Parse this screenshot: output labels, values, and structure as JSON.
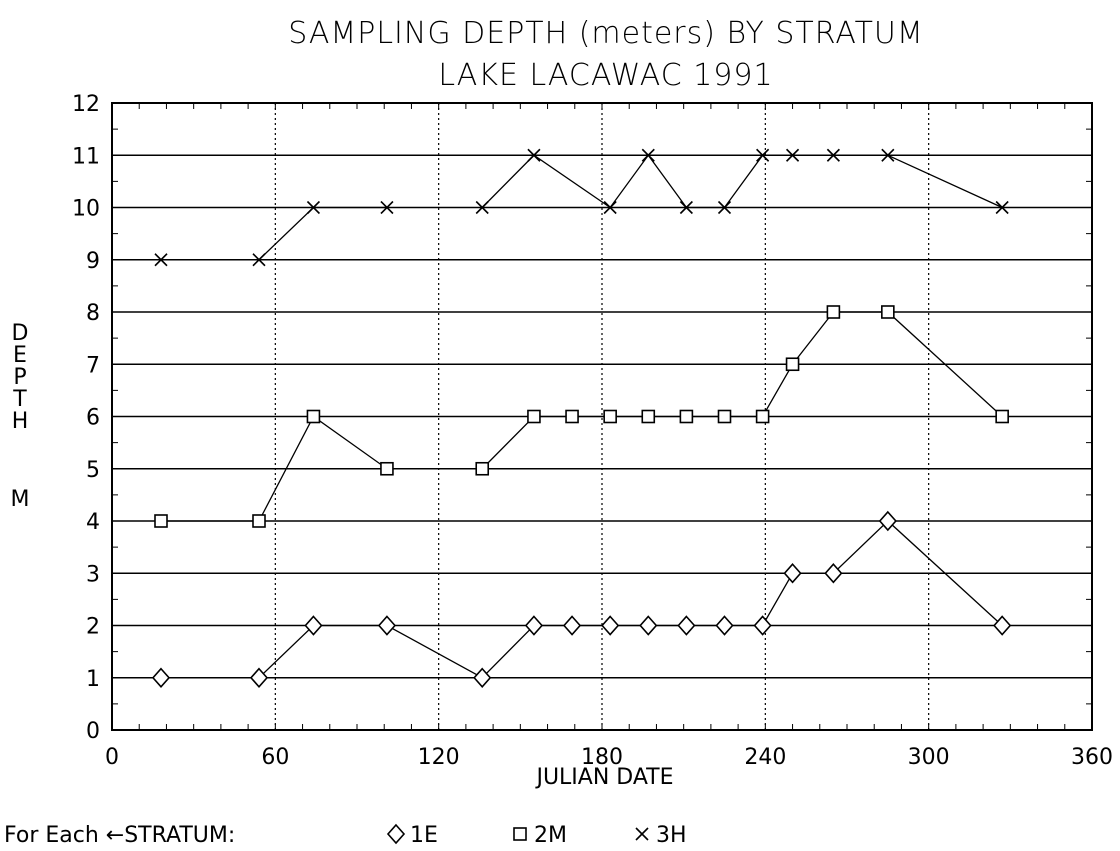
{
  "chart_data": {
    "type": "line",
    "title": "SAMPLING DEPTH (meters) BY STRATUM",
    "subtitle": "LAKE LACAWAC   1991",
    "xlabel": "JULIAN DATE",
    "ylabel": "DEPTH M",
    "xlim": [
      0,
      360
    ],
    "ylim": [
      0,
      12
    ],
    "xticks": [
      0,
      60,
      120,
      180,
      240,
      300,
      360
    ],
    "yticks": [
      0,
      1,
      2,
      3,
      4,
      5,
      6,
      7,
      8,
      9,
      10,
      11,
      12
    ],
    "grid": true,
    "legend": {
      "prefix": "For Each ←STRATUM:",
      "position": "bottom-left"
    },
    "series": [
      {
        "name": "1E",
        "marker": "diamond",
        "segments": [
          [
            [
              18,
              1
            ],
            [
              54,
              1
            ],
            [
              74,
              2
            ],
            [
              101,
              2
            ],
            [
              136,
              1
            ],
            [
              155,
              2
            ],
            [
              169,
              2
            ],
            [
              183,
              2
            ],
            [
              197,
              2
            ],
            [
              211,
              2
            ],
            [
              225,
              2
            ],
            [
              239,
              2
            ],
            [
              250,
              3
            ],
            [
              265,
              3
            ],
            [
              285,
              4
            ],
            [
              327,
              2
            ]
          ]
        ]
      },
      {
        "name": "2M",
        "marker": "square",
        "segments": [
          [
            [
              18,
              4
            ],
            [
              54,
              4
            ],
            [
              74,
              6
            ],
            [
              101,
              5
            ]
          ],
          [
            [
              136,
              5
            ],
            [
              155,
              6
            ],
            [
              169,
              6
            ],
            [
              183,
              6
            ],
            [
              197,
              6
            ],
            [
              211,
              6
            ],
            [
              225,
              6
            ],
            [
              239,
              6
            ],
            [
              250,
              7
            ],
            [
              265,
              8
            ],
            [
              285,
              8
            ],
            [
              327,
              6
            ]
          ]
        ]
      },
      {
        "name": "3H",
        "marker": "x",
        "segments": [
          [
            [
              18,
              9
            ],
            [
              54,
              9
            ],
            [
              74,
              10
            ],
            [
              101,
              10
            ]
          ],
          [
            [
              136,
              10
            ],
            [
              155,
              11
            ],
            [
              183,
              10
            ],
            [
              197,
              11
            ],
            [
              211,
              10
            ],
            [
              225,
              10
            ],
            [
              239,
              11
            ],
            [
              250,
              11
            ],
            [
              265,
              11
            ],
            [
              285,
              11
            ],
            [
              327,
              10
            ]
          ]
        ]
      }
    ]
  }
}
